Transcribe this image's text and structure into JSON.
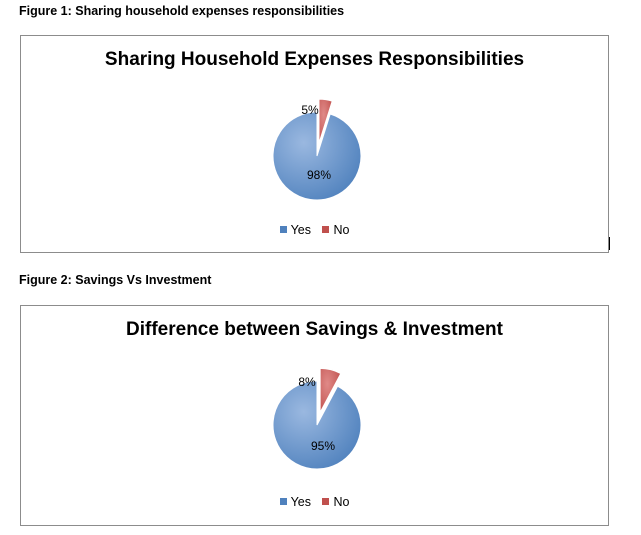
{
  "figure1": {
    "caption": "Figure 1:  Sharing household expenses responsibilities"
  },
  "figure2": {
    "caption": "Figure 2:  Savings Vs Investment"
  },
  "colors": {
    "yes": "#4f81bd",
    "no": "#c0504d"
  },
  "chart_data": [
    {
      "type": "pie",
      "title": "Sharing Household  Expenses  Responsibilities",
      "categories": [
        "Yes",
        "No"
      ],
      "values": [
        98,
        5
      ],
      "labels": [
        "98%",
        "5%"
      ],
      "exploded": "No",
      "legend": "bottom"
    },
    {
      "type": "pie",
      "title": "Difference between Savings  &  Investment",
      "categories": [
        "Yes",
        "No"
      ],
      "values": [
        95,
        8
      ],
      "labels": [
        "95%",
        "8%"
      ],
      "exploded": "No",
      "legend": "bottom"
    }
  ]
}
